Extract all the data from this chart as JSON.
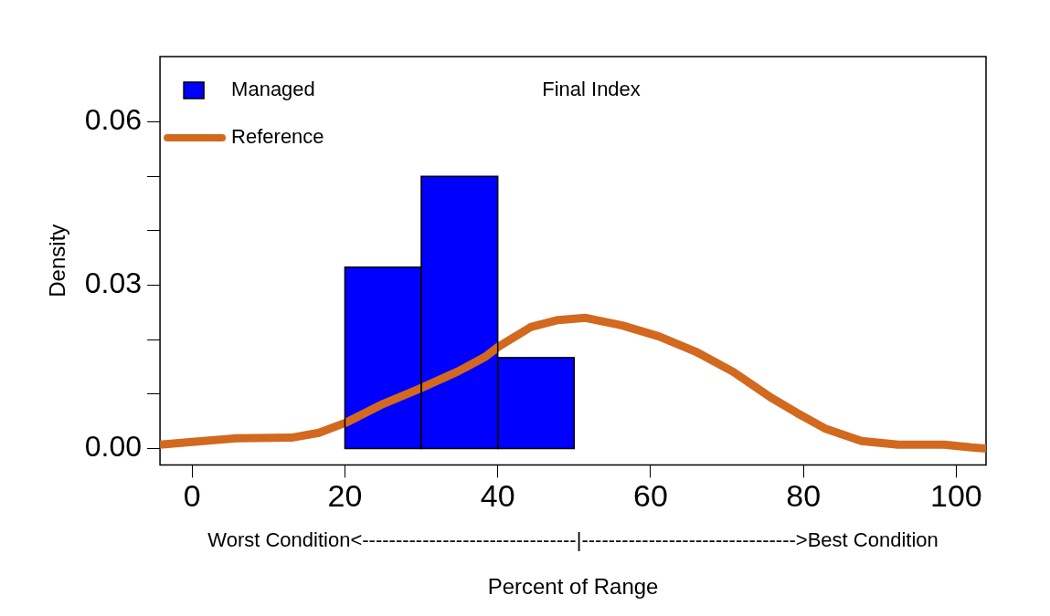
{
  "chart_data": {
    "type": "histogram",
    "title": "Final Index",
    "xlabel": "Percent of Range",
    "ylabel": "Density",
    "bins": [
      20,
      30,
      40,
      50
    ],
    "series": [
      {
        "name": "Managed",
        "color": "#0000ff",
        "values": [
          0.0333,
          0.05,
          0.0167
        ]
      },
      {
        "name": "Reference",
        "type": "line",
        "color": "#d2691e",
        "x": [
          -4.2,
          0,
          5.8,
          13,
          16.6,
          20.2,
          25,
          29.8,
          34.7,
          38.3,
          40.1,
          44.3,
          47.9,
          51.5,
          56.3,
          61.1,
          65.9,
          70.8,
          75.6,
          79.2,
          82.8,
          87.6,
          92.4,
          98.4,
          102,
          103.9
        ],
        "values": [
          0.0007,
          0.0012,
          0.0019,
          0.002,
          0.0029,
          0.0048,
          0.0082,
          0.011,
          0.0141,
          0.0168,
          0.0187,
          0.0223,
          0.0236,
          0.024,
          0.0226,
          0.0206,
          0.0178,
          0.0141,
          0.0095,
          0.0065,
          0.0037,
          0.0014,
          0.0007,
          0.0007,
          0.0002,
          0
        ]
      }
    ],
    "xlim": [
      -4.2,
      103.9
    ],
    "xticks": [
      0,
      20,
      40,
      60,
      80,
      100
    ],
    "ylim": [
      -0.003,
      0.072
    ],
    "yticks": [
      {
        "value": 0,
        "label": "0.00"
      },
      {
        "value": 0.01,
        "label": null
      },
      {
        "value": 0.02,
        "label": null
      },
      {
        "value": 0.03,
        "label": "0.03"
      },
      {
        "value": 0.04,
        "label": null
      },
      {
        "value": 0.05,
        "label": null
      },
      {
        "value": 0.06,
        "label": "0.06"
      }
    ],
    "annotations": [
      "Worst Condition<--------------------------------|-------------------------------->Best Condition"
    ],
    "legend": "top left",
    "grid": false
  }
}
